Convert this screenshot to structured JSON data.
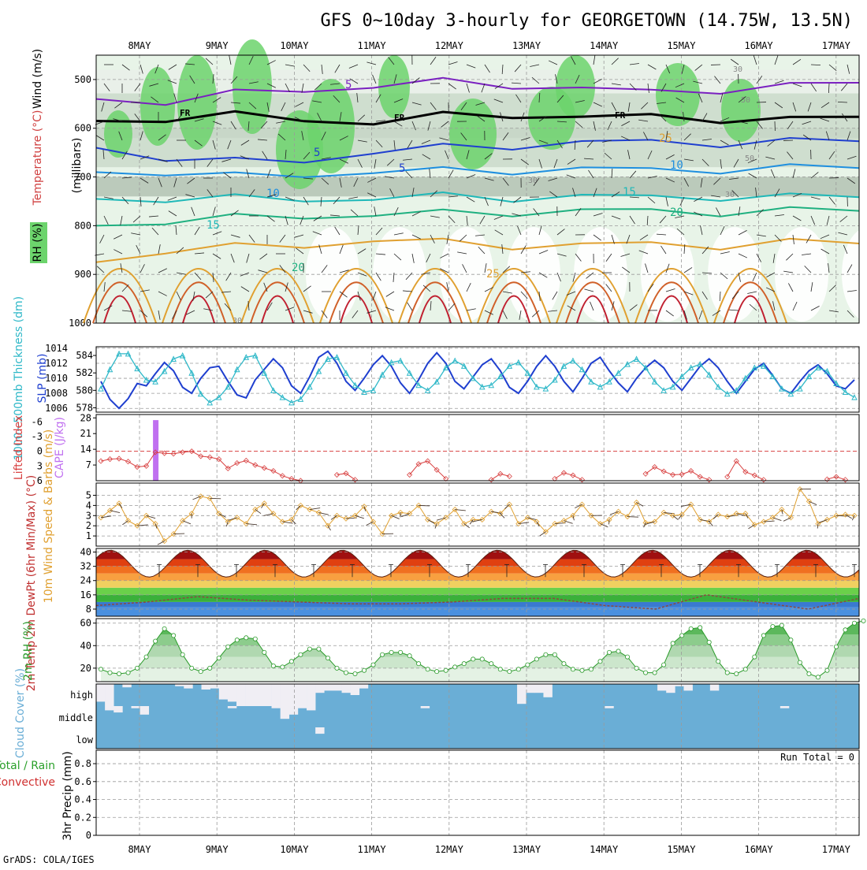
{
  "title": "GFS 0~10day 3-hourly for GEORGETOWN (14.75W, 13.5N)",
  "credit": "GrADS: COLA/IGES",
  "dates": [
    "8MAY",
    "9MAY",
    "10MAY",
    "11MAY",
    "12MAY",
    "13MAY",
    "14MAY",
    "15MAY",
    "16MAY",
    "17MAY"
  ],
  "colors": {
    "frame": "#000000",
    "grid": "#9a9a9a",
    "rh_light": "#e8f4e8",
    "rh_mid": "#c4d4c4",
    "rh_dark": "#a8b8a8",
    "rh_green": "#6cd46c",
    "fr_line": "#000000",
    "slp": "#1f3fcf",
    "thickness": "#2fb8c8",
    "cape": "#c070f0",
    "li": "#d84040",
    "wind10": "#e0a030",
    "rh2m": "#2a9a2a",
    "cloud": "#6aaed6",
    "cloud_gap": "#f0eef4",
    "barb": "#4a3a30"
  },
  "upper_panel": {
    "ylabel_wind": "Wind (m/s)",
    "ylabel_temp": "Temperature (°C)",
    "ylabel_rh": "RH (%)",
    "ylabel_p": "(millibars)",
    "p_ticks": [
      500,
      600,
      700,
      800,
      900,
      1000
    ],
    "p_range": [
      450,
      1000
    ],
    "isotherm_labels": [
      "5",
      "5",
      "5",
      "10",
      "10",
      "15",
      "15",
      "20",
      "20",
      "25",
      "25"
    ],
    "fr_labels": [
      "FR",
      "FR",
      "FR"
    ],
    "rh_labels": [
      "30",
      "50",
      "30",
      "30",
      "50",
      "30"
    ],
    "isotherms": [
      {
        "value": -5,
        "color": "#7a20c0",
        "p": [
          540,
          545,
          530,
          520,
          515,
          505,
          510,
          520,
          525,
          520,
          515,
          505
        ]
      },
      {
        "value": 0,
        "color": "#000000",
        "p": [
          585,
          580,
          575,
          580,
          590,
          575,
          570,
          580,
          575,
          580,
          585,
          575
        ]
      },
      {
        "value": 5,
        "color": "#1f3fcf",
        "p": [
          640,
          660,
          670,
          665,
          650,
          640,
          635,
          630,
          628,
          630,
          628,
          625
        ]
      },
      {
        "value": 10,
        "color": "#1f8fdf",
        "p": [
          690,
          690,
          700,
          695,
          690,
          688,
          686,
          684,
          686,
          684,
          682,
          680
        ]
      },
      {
        "value": 15,
        "color": "#1fb8b8",
        "p": [
          745,
          745,
          745,
          745,
          745,
          740,
          742,
          740,
          742,
          740,
          742,
          740
        ]
      },
      {
        "value": 20,
        "color": "#1fb080",
        "p": [
          800,
          790,
          785,
          780,
          778,
          775,
          772,
          770,
          770,
          772,
          770,
          768
        ]
      },
      {
        "value": 25,
        "color": "#e0a030",
        "p": [
          875,
          850,
          845,
          840,
          830,
          835,
          840,
          840,
          838,
          840,
          835,
          835
        ]
      }
    ]
  },
  "chart_data": [
    {
      "type": "line",
      "name": "SLP and 1000-500mb thickness",
      "ylabel_left": "1000~500mb Thickness (dm)",
      "ylabel_right": "SLP (mb)",
      "left_ticks": [
        578,
        580,
        582,
        584
      ],
      "left_range": [
        577.5,
        585
      ],
      "right_ticks": [
        1006,
        1008,
        1010,
        1012,
        1014
      ],
      "right_range": [
        1005.5,
        1014.2
      ],
      "series": [
        {
          "name": "SLP",
          "axis": "right",
          "color": "#1f3fcf",
          "values": [
            1009.6,
            1007.2,
            1006.0,
            1007.3,
            1009.3,
            1009.0,
            1010.6,
            1012.1,
            1011.0,
            1008.8,
            1008.0,
            1010.0,
            1011.4,
            1011.6,
            1009.6,
            1007.8,
            1007.4,
            1009.8,
            1011.2,
            1012.6,
            1011.4,
            1009.0,
            1008.0,
            1010.2,
            1012.8,
            1013.6,
            1012.0,
            1009.6,
            1008.4,
            1010.0,
            1011.8,
            1013.0,
            1011.6,
            1009.4,
            1008.0,
            1009.8,
            1012.0,
            1013.4,
            1012.0,
            1009.6,
            1008.6,
            1010.2,
            1011.8,
            1012.6,
            1011.0,
            1008.8,
            1008.0,
            1009.6,
            1011.6,
            1013.0,
            1011.6,
            1009.6,
            1008.2,
            1010.0,
            1012.0,
            1012.8,
            1011.0,
            1009.4,
            1008.2,
            1010.0,
            1011.4,
            1012.4,
            1011.4,
            1009.6,
            1008.4,
            1010.0,
            1011.6,
            1012.6,
            1011.4,
            1009.6,
            1008.0,
            1009.6,
            1011.2,
            1012.0,
            1010.4,
            1008.6,
            1008.0,
            1009.6,
            1011.0,
            1011.8,
            1010.6,
            1009.0,
            1008.6,
            1009.8
          ]
        },
        {
          "name": "Thickness",
          "axis": "left",
          "color": "#2fb8c8",
          "values": [
            580.2,
            582.4,
            584.2,
            584.2,
            582.5,
            581.2,
            581.0,
            582.2,
            583.6,
            584.0,
            582.0,
            579.6,
            578.6,
            579.2,
            580.4,
            582.4,
            583.8,
            584.0,
            582.0,
            580.0,
            579.2,
            578.6,
            579.0,
            580.4,
            582.2,
            583.6,
            583.8,
            582.0,
            580.6,
            579.8,
            580.0,
            581.8,
            583.2,
            583.4,
            582.0,
            580.6,
            580.0,
            581.0,
            582.6,
            583.4,
            582.8,
            581.4,
            580.4,
            580.6,
            581.6,
            582.8,
            583.2,
            582.0,
            580.4,
            580.2,
            581.2,
            582.8,
            583.4,
            582.4,
            581.0,
            580.4,
            581.0,
            582.0,
            583.0,
            583.6,
            582.6,
            581.0,
            580.0,
            580.4,
            581.6,
            582.6,
            583.0,
            581.8,
            580.4,
            579.6,
            580.0,
            581.4,
            582.6,
            582.8,
            581.6,
            580.2,
            579.6,
            580.2,
            581.6,
            582.6,
            582.2,
            580.8,
            579.8,
            579.2
          ]
        }
      ]
    },
    {
      "type": "bar",
      "name": "CAPE and Lifted Index",
      "ylabel_left": "Lifted Index",
      "ylabel_right": "CAPE (J/kg)",
      "left_ticks": [
        6,
        3,
        0,
        -3,
        -6
      ],
      "left_range": [
        6,
        -7.5
      ],
      "right_ticks": [
        7,
        14,
        21,
        28
      ],
      "right_range": [
        0,
        29.5
      ],
      "dashed_level_li": 0,
      "cape_bar": {
        "x_index": 6,
        "value": 27
      },
      "li_series": [
        {
          "start": 0,
          "values": [
            2.0,
            1.6,
            1.5,
            2.1,
            3.2,
            3.0,
            0.2,
            0.4,
            0.5,
            0.2,
            0.0,
            1.0,
            1.2,
            1.6,
            3.5,
            2.4,
            1.9,
            2.8,
            3.4,
            4.0,
            5.0,
            5.6,
            6.0
          ]
        },
        {
          "start": 26,
          "values": [
            4.8,
            4.5,
            5.8
          ]
        },
        {
          "start": 34,
          "values": [
            4.8,
            2.6,
            2.0,
            3.8,
            5.6
          ]
        },
        {
          "start": 43,
          "values": [
            5.8,
            4.6,
            5.1
          ]
        },
        {
          "start": 50,
          "values": [
            5.6,
            4.4,
            4.9,
            5.8
          ]
        },
        {
          "start": 60,
          "values": [
            4.6,
            3.2,
            4.1,
            4.8,
            4.7,
            4.0,
            5.2,
            5.8
          ]
        },
        {
          "start": 69,
          "values": [
            5.2,
            2.0,
            4.2,
            4.9,
            5.8
          ]
        },
        {
          "start": 80,
          "values": [
            5.7,
            5.2,
            5.8
          ]
        }
      ]
    },
    {
      "type": "line",
      "name": "10m Wind Speed and Barbs",
      "ylabel": "10m Wind Speed & Barbs (m/s)",
      "ticks": [
        1,
        2,
        3,
        4,
        5
      ],
      "range": [
        0,
        6.2
      ],
      "values": [
        2.8,
        3.5,
        4.2,
        2.5,
        2.0,
        3.0,
        2.2,
        0.5,
        1.2,
        2.5,
        3.2,
        4.9,
        4.7,
        3.2,
        2.4,
        2.8,
        2.2,
        3.6,
        4.2,
        3.2,
        2.4,
        2.6,
        4.0,
        3.6,
        3.3,
        2.0,
        3.0,
        2.7,
        3.0,
        3.9,
        2.4,
        1.2,
        3.0,
        3.3,
        3.2,
        4.0,
        2.6,
        2.2,
        2.8,
        3.6,
        2.2,
        2.6,
        2.6,
        3.4,
        3.2,
        4.1,
        2.2,
        2.8,
        2.4,
        1.4,
        2.2,
        2.5,
        3.0,
        4.1,
        3.0,
        2.2,
        2.6,
        3.4,
        2.9,
        4.3,
        2.3,
        2.4,
        3.3,
        3.0,
        3.1,
        4.1,
        2.6,
        2.4,
        3.1,
        2.9,
        3.2,
        3.2,
        2.1,
        2.4,
        2.8,
        3.6,
        2.8,
        5.6,
        4.4,
        2.2,
        2.6,
        3.0,
        3.1,
        3.0
      ]
    },
    {
      "type": "area",
      "name": "2m Temp and DewPt",
      "ylabel": "2m Temp 2m DewPt (6hr Min/Max) (°C)",
      "ticks": [
        8,
        16,
        24,
        32,
        40
      ],
      "range": [
        4,
        42
      ],
      "temp_max": [
        41,
        41,
        41,
        41,
        41,
        41,
        41,
        41,
        41,
        41
      ],
      "temp_min": [
        27,
        27,
        26,
        26,
        26,
        26,
        26,
        26,
        26,
        26
      ],
      "dewpoint": [
        10,
        12,
        15,
        13,
        12,
        11,
        11,
        12,
        14,
        14,
        10,
        8,
        16,
        12,
        8,
        14
      ]
    },
    {
      "type": "area",
      "name": "2m RH",
      "ylabel": "2m RH (%)",
      "ticks": [
        20,
        40,
        60
      ],
      "range": [
        8,
        64
      ],
      "values": [
        19,
        16,
        15,
        16,
        20,
        30,
        44,
        55,
        49,
        32,
        20,
        17,
        20,
        29,
        39,
        45,
        47,
        46,
        34,
        22,
        21,
        26,
        32,
        37,
        37,
        29,
        20,
        16,
        15,
        18,
        23,
        32,
        34,
        34,
        31,
        24,
        19,
        17,
        18,
        21,
        24,
        28,
        28,
        24,
        19,
        17,
        19,
        23,
        28,
        32,
        32,
        24,
        19,
        18,
        19,
        26,
        34,
        35,
        30,
        20,
        16,
        16,
        23,
        42,
        49,
        55,
        56,
        43,
        26,
        16,
        15,
        19,
        30,
        49,
        57,
        58,
        45,
        25,
        15,
        12,
        18,
        39,
        54,
        60,
        62
      ]
    },
    {
      "type": "heatmap",
      "name": "Cloud Cover",
      "ylabel": "Cloud Cover (%)",
      "levels": [
        "high",
        "middle",
        "low"
      ],
      "high": [
        80,
        100,
        0,
        15,
        0,
        0,
        0,
        0,
        0,
        10,
        20,
        0,
        25,
        20,
        70,
        80,
        100,
        100,
        100,
        100,
        100,
        100,
        100,
        100,
        100,
        40,
        30,
        30,
        40,
        50,
        20,
        0,
        0,
        0,
        0,
        0,
        0,
        0,
        0,
        0,
        0,
        0,
        0,
        0,
        0,
        0,
        0,
        0,
        90,
        40,
        40,
        60,
        0,
        0,
        0,
        0,
        0,
        0,
        0,
        0,
        0,
        0,
        0,
        0,
        30,
        40,
        10,
        30,
        0,
        0,
        30,
        0,
        0,
        0,
        0,
        0,
        0,
        0,
        0,
        0,
        0,
        0,
        0,
        0,
        0,
        0,
        0
      ],
      "middle": [
        0,
        20,
        30,
        0,
        10,
        40,
        0,
        0,
        0,
        0,
        0,
        0,
        0,
        0,
        0,
        10,
        0,
        0,
        0,
        0,
        10,
        60,
        40,
        10,
        20,
        0,
        0,
        0,
        0,
        0,
        0,
        0,
        0,
        0,
        0,
        0,
        0,
        10,
        0,
        0,
        0,
        0,
        0,
        0,
        0,
        0,
        0,
        0,
        0,
        0,
        0,
        0,
        0,
        0,
        0,
        0,
        0,
        0,
        10,
        0,
        0,
        0,
        0,
        0,
        0,
        0,
        0,
        0,
        0,
        0,
        0,
        0,
        0,
        0,
        0,
        0,
        0,
        0,
        10,
        0,
        0,
        0,
        0,
        0,
        0,
        0,
        0,
        0
      ],
      "low": [
        0,
        0,
        0,
        0,
        0,
        0,
        0,
        0,
        0,
        0,
        0,
        0,
        0,
        0,
        0,
        0,
        0,
        0,
        0,
        0,
        0,
        0,
        0,
        0,
        0,
        30,
        0,
        0,
        0,
        0,
        0,
        0,
        0,
        0,
        0,
        0,
        0,
        0,
        0,
        0,
        0,
        0,
        0,
        0,
        0,
        0,
        0,
        0,
        0,
        0,
        0,
        0,
        0,
        0,
        0,
        0,
        0,
        0,
        0,
        0,
        0,
        0,
        0,
        0,
        0,
        0,
        0,
        0,
        0,
        0,
        0,
        0,
        0,
        0,
        0,
        0,
        0,
        0,
        0,
        0,
        0,
        0,
        0,
        0
      ]
    },
    {
      "type": "bar",
      "name": "3hr Precip",
      "ylabel_left_1": "Total / Rain",
      "ylabel_left_2": "Convective",
      "ylabel": "3hr Precip (mm)",
      "ticks": [
        0,
        0.2,
        0.4,
        0.6,
        0.8
      ],
      "range": [
        0,
        0.95
      ],
      "run_total_label": "Run Total = 0",
      "values": []
    }
  ]
}
